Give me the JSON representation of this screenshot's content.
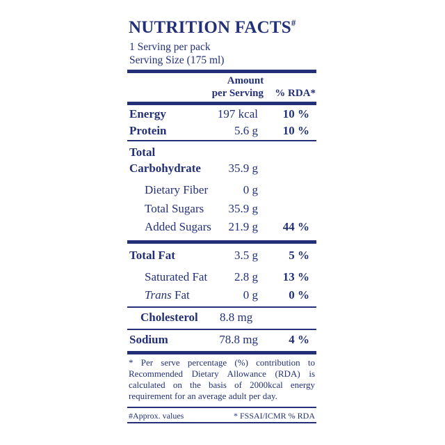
{
  "title": "NUTRITION FACTS",
  "title_mark": "#",
  "servings_per_pack": "1 Serving per pack",
  "serving_size": "Serving Size (175 ml)",
  "header": {
    "amount_line1": "Amount",
    "amount_line2": "per Serving",
    "rda": "% RDA*"
  },
  "rows": [
    {
      "label": "Energy",
      "amount": "197 kcal",
      "rda": "10 %"
    },
    {
      "label": "Protein",
      "amount": "5.6 g",
      "rda": "10 %"
    },
    {
      "label_line1": "Total",
      "label_line2": "Carbohydrate",
      "amount": "35.9 g",
      "rda": ""
    },
    {
      "label": "Dietary Fiber",
      "amount": "0 g",
      "rda": ""
    },
    {
      "label": "Total Sugars",
      "amount": "35.9 g",
      "rda": ""
    },
    {
      "label": "Added Sugars",
      "amount": "21.9 g",
      "rda": "44 %"
    },
    {
      "label": "Total Fat",
      "amount": "3.5 g",
      "rda": "5 %"
    },
    {
      "label": "Saturated Fat",
      "amount": "2.8 g",
      "rda": "13 %"
    },
    {
      "label_italic": "Trans",
      "label_rest": " Fat",
      "amount": "0 g",
      "rda": "0 %"
    },
    {
      "label": "Cholesterol",
      "amount": "8.8 mg",
      "rda": ""
    },
    {
      "label": "Sodium",
      "amount": "78.8 mg",
      "rda": "4 %"
    }
  ],
  "footnote": "* Per serve percentage (%) contribution to Recommended Dietary Allowance (RDA) is calculated on the basis of 2000kcal energy requirement for an average adult per day.",
  "approx_note": "#Approx. values",
  "source_note": "* FSSAI/ICMR % RDA",
  "colors": {
    "ink": "#233077",
    "background": "#ffffff"
  }
}
